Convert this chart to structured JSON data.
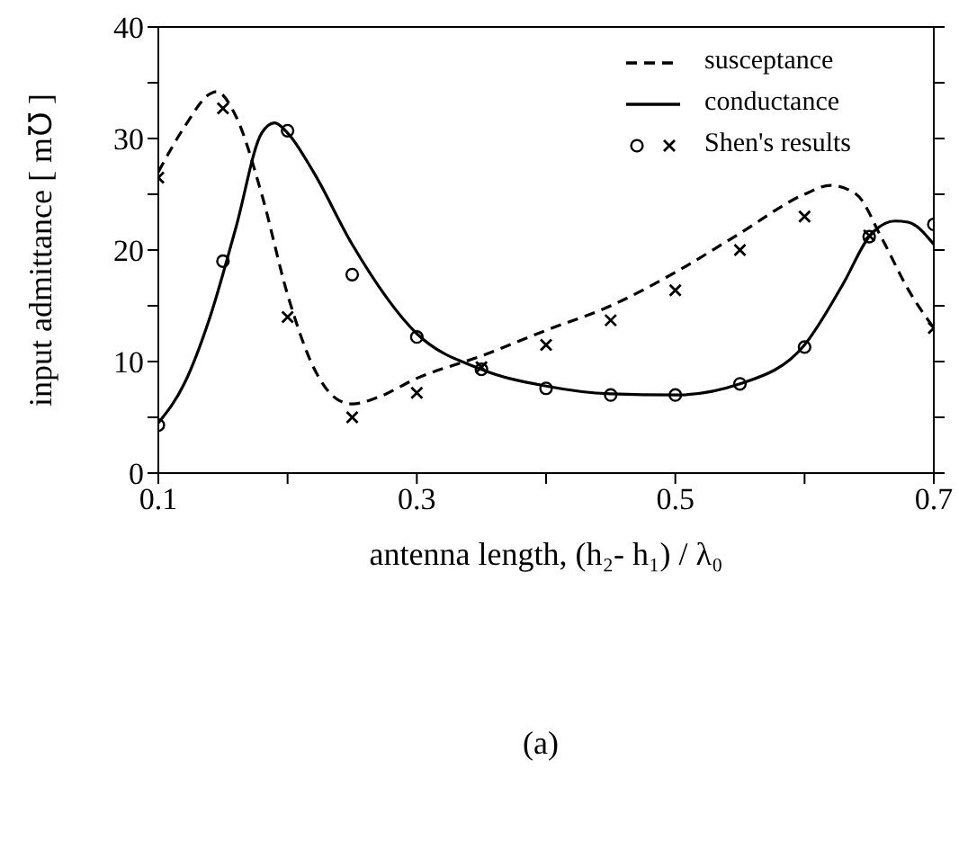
{
  "chart_data": {
    "type": "line",
    "xlabel": "antenna length, (h₂- h₁) /  λ₀",
    "ylabel": "input admittance [ m℧ ]",
    "annotations": [
      "(a)"
    ],
    "xlim": [
      0.1,
      0.7
    ],
    "xticks": [
      0.1,
      {
        "value": 0.2,
        "label": null
      },
      0.3,
      {
        "value": 0.4,
        "label": null
      },
      0.5,
      {
        "value": 0.6,
        "label": null
      },
      0.7
    ],
    "ylim": [
      0,
      40
    ],
    "yticks": [
      0,
      {
        "value": 5,
        "label": null
      },
      10,
      {
        "value": 15,
        "label": null
      },
      20,
      {
        "value": 25,
        "label": null
      },
      30,
      {
        "value": 35,
        "label": null
      },
      40
    ],
    "grid": false,
    "legend": "top right",
    "series": [
      {
        "name": "susceptance",
        "color": "#000000",
        "line_style": "dashed",
        "marker": "none",
        "x": [
          0.1,
          0.12,
          0.14,
          0.145,
          0.16,
          0.18,
          0.2,
          0.22,
          0.24,
          0.25,
          0.27,
          0.3,
          0.35,
          0.4,
          0.45,
          0.5,
          0.55,
          0.6,
          0.62,
          0.64,
          0.66,
          0.68,
          0.7
        ],
        "values": [
          27,
          31,
          34,
          34.2,
          32,
          25,
          16,
          9.5,
          6.5,
          6.2,
          6.8,
          8.5,
          10.5,
          12.8,
          15,
          18,
          21.5,
          25,
          25.8,
          25,
          21,
          16.5,
          13
        ]
      },
      {
        "name": "conductance",
        "color": "#000000",
        "line_style": "solid",
        "marker": "none",
        "x": [
          0.1,
          0.12,
          0.14,
          0.16,
          0.18,
          0.19,
          0.2,
          0.22,
          0.25,
          0.3,
          0.35,
          0.4,
          0.45,
          0.5,
          0.55,
          0.6,
          0.63,
          0.65,
          0.67,
          0.68,
          0.7
        ],
        "values": [
          4.5,
          8,
          14,
          22,
          30.5,
          31.4,
          30.5,
          27,
          20.5,
          12.5,
          9.3,
          7.8,
          7.1,
          7.0,
          8,
          11.5,
          17,
          21.2,
          22.6,
          22.5,
          20.5
        ]
      },
      {
        "name": "Shen's results",
        "type": "scatter",
        "color": "#000000",
        "marker": "circle",
        "x": [
          0.1,
          0.15,
          0.2,
          0.25,
          0.3,
          0.35,
          0.4,
          0.45,
          0.5,
          0.55,
          0.6,
          0.65,
          0.7
        ],
        "values": [
          4.3,
          19,
          30.7,
          17.8,
          12.2,
          9.3,
          7.6,
          7.0,
          7.0,
          8.0,
          11.3,
          21.2,
          22.3
        ]
      },
      {
        "type": "scatter",
        "color": "#000000",
        "marker": "cross",
        "x": [
          0.1,
          0.15,
          0.2,
          0.25,
          0.3,
          0.35,
          0.4,
          0.45,
          0.5,
          0.55,
          0.6,
          0.65,
          0.7
        ],
        "values": [
          26.5,
          32.7,
          14,
          5,
          7.2,
          9.5,
          11.5,
          13.7,
          16.4,
          20,
          23,
          21.3,
          13
        ]
      }
    ]
  }
}
